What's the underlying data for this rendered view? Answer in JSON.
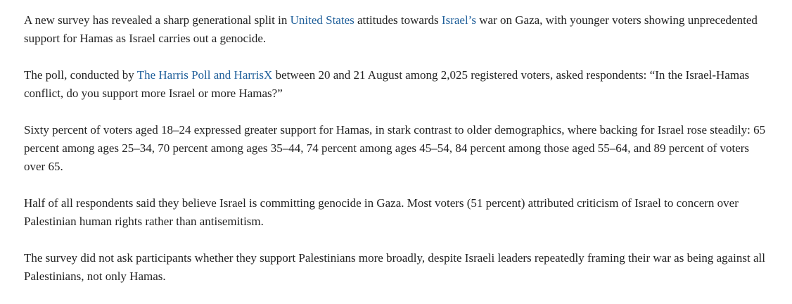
{
  "article": {
    "p1": {
      "t1": "A new survey has revealed a sharp generational split in ",
      "link1": "United States",
      "t2": " attitudes towards ",
      "link2": "Israel’s",
      "t3": " war on Gaza, with younger voters showing unprecedented support for Hamas as Israel carries out a genocide."
    },
    "p2": {
      "t1": "The poll, conducted by ",
      "link1": "The Harris Poll and HarrisX",
      "t2": " between 20 and 21 August among 2,025 registered voters, asked respondents: “In the Israel-Hamas conflict, do you support more Israel or more Hamas?”"
    },
    "p3": "Sixty percent of voters aged 18–24 expressed greater support for Hamas, in stark contrast to older demographics, where backing for Israel rose steadily: 65 percent among ages 25–34, 70 percent among ages 35–44, 74 percent among ages 45–54, 84 percent among those aged 55–64, and 89 percent of voters over 65.",
    "p4": "Half of all respondents said they believe Israel is committing genocide in Gaza. Most voters (51 percent) attributed criticism of Israel to concern over Palestinian human rights rather than antisemitism.",
    "p5": "The survey did not ask participants whether they support Palestinians more broadly, despite Israeli leaders repeatedly framing their war as being against all Palestinians, not only Hamas."
  },
  "colors": {
    "text": "#222222",
    "link": "#1f5f9a",
    "background": "#ffffff"
  }
}
